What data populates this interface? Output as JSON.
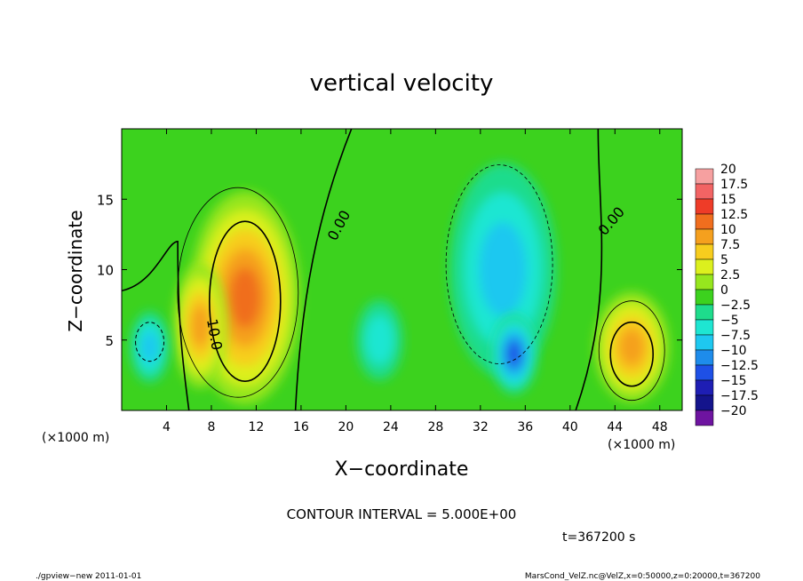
{
  "chart_data": {
    "type": "heatmap",
    "title": "vertical velocity",
    "xlabel": "X−coordinate",
    "ylabel": "Z−coordinate",
    "x_unit_left": "(×1000 m)",
    "x_unit_right": "(×1000 m)",
    "xlim": [
      0,
      50
    ],
    "ylim": [
      0,
      20
    ],
    "x_ticks": [
      "4",
      "8",
      "12",
      "16",
      "20",
      "24",
      "28",
      "32",
      "36",
      "40",
      "44",
      "48"
    ],
    "y_ticks": [
      "5",
      "10",
      "15"
    ],
    "contour_labels": [
      "0.00",
      "10.0",
      "0.00"
    ],
    "colorbar_labels": [
      "20",
      "17.5",
      "15",
      "12.5",
      "10",
      "7.5",
      "5",
      "2.5",
      "0",
      "−2.5",
      "−5",
      "−7.5",
      "−10",
      "−12.5",
      "−15",
      "−17.5",
      "−20"
    ],
    "colorbar_colors": [
      "#f6a0a0",
      "#f26464",
      "#ee3c28",
      "#f06e1e",
      "#f5a01e",
      "#f7cd1e",
      "#dcf01e",
      "#96e61e",
      "#3cd21e",
      "#1edc8c",
      "#1ee6d2",
      "#1ec8f0",
      "#1e8ceb",
      "#1e50e6",
      "#1e1eb4",
      "#14148c",
      "#6e14a0"
    ],
    "features": [
      {
        "kind": "updraft",
        "x": 11,
        "z": 8,
        "peak": 12.5
      },
      {
        "kind": "updraft",
        "x": 7,
        "z": 6,
        "peak": 10
      },
      {
        "kind": "updraft",
        "x": 45.5,
        "z": 4.5,
        "peak": 10
      },
      {
        "kind": "downdraft",
        "x": 2.5,
        "z": 4.5,
        "peak": -7.5
      },
      {
        "kind": "downdraft",
        "x": 34,
        "z": 10,
        "peak": -7.5
      },
      {
        "kind": "downdraft",
        "x": 35,
        "z": 4,
        "peak": -12.5
      },
      {
        "kind": "downdraft",
        "x": 23,
        "z": 5,
        "peak": -5
      }
    ]
  },
  "contour_interval": "CONTOUR INTERVAL = 5.000E+00",
  "time_label": "t=367200 s",
  "footer_left": "./gpview−new   2011-01-01",
  "footer_right": "MarsCond_VelZ.nc@VelZ,x=0:50000,z=0:20000,t=367200"
}
